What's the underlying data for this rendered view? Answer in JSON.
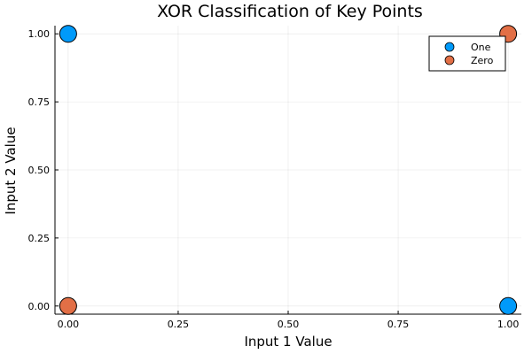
{
  "chart_data": {
    "type": "scatter",
    "title": "XOR Classification of Key Points",
    "xlabel": "Input 1 Value",
    "ylabel": "Input 2 Value",
    "xlim": [
      -0.03,
      1.03
    ],
    "ylim": [
      -0.03,
      1.03
    ],
    "xticks": [
      0.0,
      0.25,
      0.5,
      0.75,
      1.0
    ],
    "xtick_labels": [
      "0.00",
      "0.25",
      "0.50",
      "0.75",
      "1.00"
    ],
    "yticks": [
      0.0,
      0.25,
      0.5,
      0.75,
      1.0
    ],
    "ytick_labels": [
      "0.00",
      "0.25",
      "0.50",
      "0.75",
      "1.00"
    ],
    "grid": true,
    "legend_position": "top-right",
    "series": [
      {
        "name": "One",
        "color": "#009AFA",
        "points": [
          {
            "x": 0,
            "y": 1
          },
          {
            "x": 1,
            "y": 0
          }
        ]
      },
      {
        "name": "Zero",
        "color": "#E26F46",
        "points": [
          {
            "x": 0,
            "y": 0
          },
          {
            "x": 1,
            "y": 1
          }
        ]
      }
    ]
  }
}
